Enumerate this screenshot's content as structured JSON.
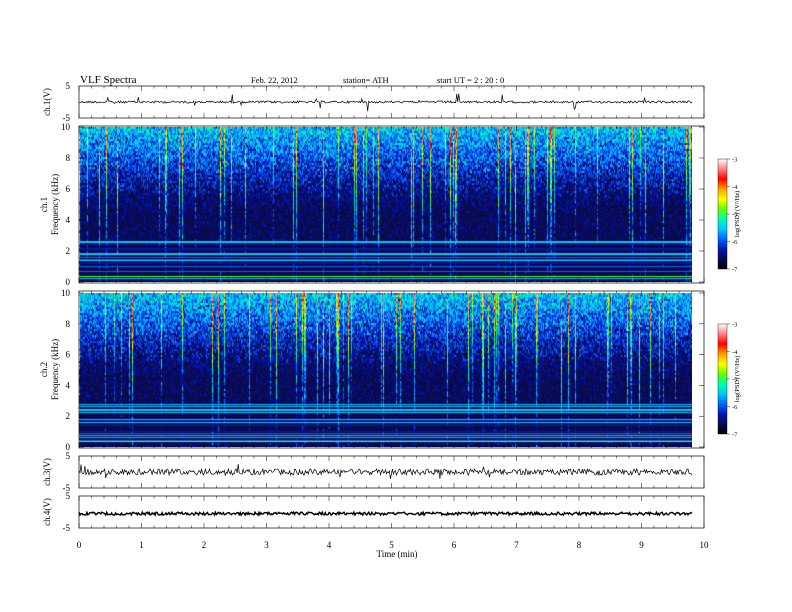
{
  "header": {
    "title": "VLF  Spectra",
    "date": "Feb. 22, 2012",
    "station": "station= ATH",
    "start": "start  UT  =   2  : 20 : 0"
  },
  "chart_data": {
    "type": "heatmap",
    "xlabel": "Time  (min)",
    "xlim": [
      0,
      10
    ],
    "x_ticks": [
      "0",
      "1",
      "2",
      "3",
      "4",
      "5",
      "6",
      "7",
      "8",
      "9",
      "10"
    ],
    "panels": [
      {
        "id": "ch1-wave",
        "ylabel": "ch.1(V)",
        "y_ticks": [
          "5",
          "-5"
        ],
        "ylim": [
          -5,
          5
        ],
        "baseline": 0.0
      },
      {
        "id": "ch1-spec",
        "ylabel_line1": "ch.1",
        "ylabel_line2": "Frequency (kHz)",
        "y_ticks": [
          "0",
          "2",
          "4",
          "6",
          "8",
          "10"
        ],
        "ylim": [
          0,
          10
        ],
        "colorbar": {
          "label": "log(PSD) (V²/Hz)",
          "ticks": [
            "-3",
            "-4",
            "-5",
            "-6",
            "-7"
          ],
          "range": [
            -7,
            -3
          ]
        }
      },
      {
        "id": "ch2-spec",
        "ylabel_line1": "ch.2",
        "ylabel_line2": "Frequency (kHz)",
        "y_ticks": [
          "0",
          "2",
          "4",
          "6",
          "8",
          "10"
        ],
        "ylim": [
          0,
          10
        ],
        "colorbar": {
          "label": "log(PSD) (V²/Hz)",
          "ticks": [
            "-3",
            "-4",
            "-5",
            "-6",
            "-7"
          ],
          "range": [
            -7,
            -3
          ]
        }
      },
      {
        "id": "ch3-wave",
        "ylabel": "ch.3(V)",
        "y_ticks": [
          "5",
          "-5"
        ],
        "ylim": [
          -5,
          5
        ],
        "baseline": 0.0
      },
      {
        "id": "ch4-wave",
        "ylabel": "ch.4(V)",
        "y_ticks": [
          "5",
          "-5"
        ],
        "ylim": [
          -5,
          5
        ],
        "baseline": -0.5
      }
    ],
    "colormap": [
      "#000000",
      "#0a0a50",
      "#0018b4",
      "#0064ff",
      "#00c8ff",
      "#00ffaa",
      "#64ff00",
      "#ffff00",
      "#ffa000",
      "#ff0000",
      "#ff8080",
      "#ffffff"
    ]
  }
}
